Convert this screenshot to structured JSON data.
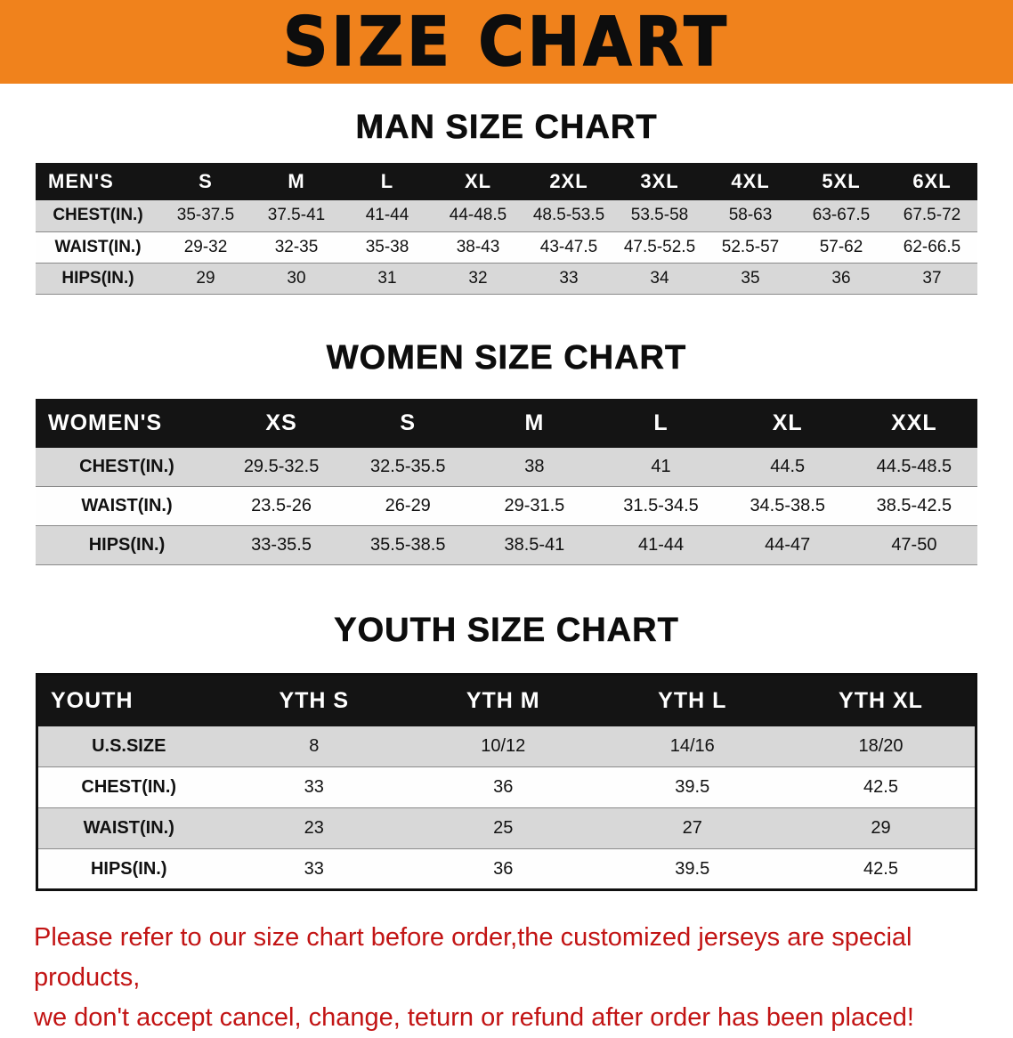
{
  "banner": {
    "title": "SIZE CHART"
  },
  "colors": {
    "banner_bg": "#F0821C",
    "table_header_bg": "#141414",
    "row_alt_gray": "#D8D8D8",
    "note_red": "#C21414"
  },
  "men": {
    "heading": "MAN SIZE CHART",
    "table": {
      "header": [
        "MEN'S",
        "S",
        "M",
        "L",
        "XL",
        "2XL",
        "3XL",
        "4XL",
        "5XL",
        "6XL"
      ],
      "rows": [
        [
          "CHEST(IN.)",
          "35-37.5",
          "37.5-41",
          "41-44",
          "44-48.5",
          "48.5-53.5",
          "53.5-58",
          "58-63",
          "63-67.5",
          "67.5-72"
        ],
        [
          "WAIST(IN.)",
          "29-32",
          "32-35",
          "35-38",
          "38-43",
          "43-47.5",
          "47.5-52.5",
          "52.5-57",
          "57-62",
          "62-66.5"
        ],
        [
          "HIPS(IN.)",
          "29",
          "30",
          "31",
          "32",
          "33",
          "34",
          "35",
          "36",
          "37"
        ]
      ]
    }
  },
  "women": {
    "heading": "WOMEN SIZE CHART",
    "table": {
      "header": [
        "WOMEN'S",
        "XS",
        "S",
        "M",
        "L",
        "XL",
        "XXL"
      ],
      "rows": [
        [
          "CHEST(IN.)",
          "29.5-32.5",
          "32.5-35.5",
          "38",
          "41",
          "44.5",
          "44.5-48.5"
        ],
        [
          "WAIST(IN.)",
          "23.5-26",
          "26-29",
          "29-31.5",
          "31.5-34.5",
          "34.5-38.5",
          "38.5-42.5"
        ],
        [
          "HIPS(IN.)",
          "33-35.5",
          "35.5-38.5",
          "38.5-41",
          "41-44",
          "44-47",
          "47-50"
        ]
      ]
    }
  },
  "youth": {
    "heading": "YOUTH SIZE CHART",
    "table": {
      "header": [
        "YOUTH",
        "YTH S",
        "YTH M",
        "YTH L",
        "YTH XL"
      ],
      "rows": [
        [
          "U.S.SIZE",
          "8",
          "10/12",
          "14/16",
          "18/20"
        ],
        [
          "CHEST(IN.)",
          "33",
          "36",
          "39.5",
          "42.5"
        ],
        [
          "WAIST(IN.)",
          "23",
          "25",
          "27",
          "29"
        ],
        [
          "HIPS(IN.)",
          "33",
          "36",
          "39.5",
          "42.5"
        ]
      ]
    }
  },
  "note": {
    "line1": "Please refer to our size chart before order,the customized jerseys are special products,",
    "line2": "we don't accept cancel, change, teturn or refund after order has been placed!"
  }
}
